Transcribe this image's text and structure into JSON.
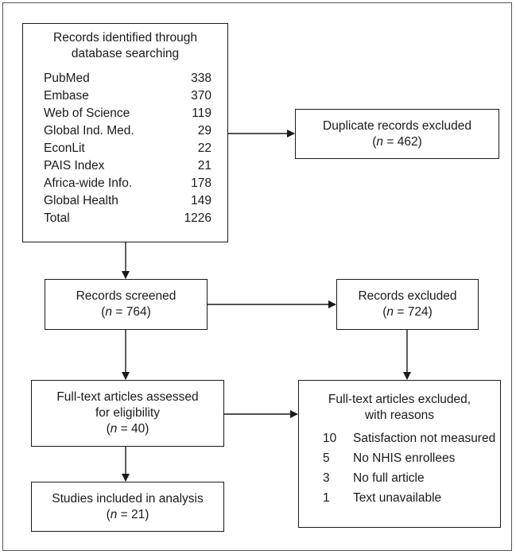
{
  "identified": {
    "title_line1": "Records identified through",
    "title_line2": "database searching",
    "databases": [
      {
        "name": "PubMed",
        "count": "338"
      },
      {
        "name": "Embase",
        "count": "370"
      },
      {
        "name": "Web of Science",
        "count": "119"
      },
      {
        "name": "Global Ind. Med.",
        "count": "29"
      },
      {
        "name": "EconLit",
        "count": "22"
      },
      {
        "name": "PAIS Index",
        "count": "21"
      },
      {
        "name": "Africa-wide Info.",
        "count": "178"
      },
      {
        "name": "Global Health",
        "count": "149"
      },
      {
        "name": "Total",
        "count": "1226"
      }
    ]
  },
  "duplicates": {
    "label": "Duplicate records excluded",
    "n_prefix": "(",
    "n_symbol": "n",
    "n_value": " = 462)"
  },
  "screened": {
    "label": "Records screened",
    "n_prefix": "(",
    "n_symbol": "n",
    "n_value": " = 764)"
  },
  "excluded": {
    "label": "Records excluded",
    "n_prefix": "(",
    "n_symbol": "n",
    "n_value": " = 724)"
  },
  "assessed": {
    "line1": "Full-text articles assessed",
    "line2": "for eligibility",
    "n_prefix": "(",
    "n_symbol": "n",
    "n_value": " = 40)"
  },
  "fulltext_excluded": {
    "line1": "Full-text articles excluded,",
    "line2": "with reasons",
    "reasons": [
      {
        "count": "10",
        "reason": "Satisfaction not measured"
      },
      {
        "count": "5",
        "reason": "No NHIS enrollees"
      },
      {
        "count": "3",
        "reason": "No full article"
      },
      {
        "count": "1",
        "reason": "Text unavailable"
      }
    ]
  },
  "included": {
    "label": "Studies included in analysis",
    "n_prefix": "(",
    "n_symbol": "n",
    "n_value": " = 21)"
  }
}
